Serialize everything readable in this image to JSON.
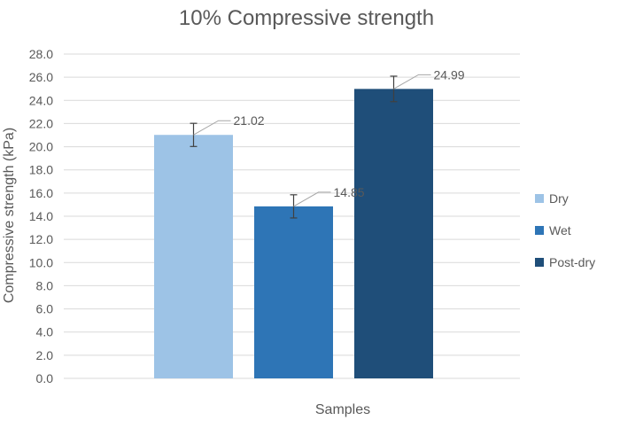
{
  "chart_data": {
    "type": "bar",
    "title": "10% Compressive strength",
    "xlabel": "Samples",
    "ylabel": "Compressive strength (kPa)",
    "ylim": [
      0,
      28
    ],
    "ytick_step": 2,
    "ytick_labels": [
      "0.0",
      "2.0",
      "4.0",
      "6.0",
      "8.0",
      "10.0",
      "12.0",
      "14.0",
      "16.0",
      "18.0",
      "20.0",
      "22.0",
      "24.0",
      "26.0",
      "28.0"
    ],
    "grid": true,
    "legend_position": "right",
    "series": [
      {
        "name": "Dry",
        "value": 21.02,
        "value_label": "21.02",
        "error": 1.0,
        "color": "#9DC3E6"
      },
      {
        "name": "Wet",
        "value": 14.85,
        "value_label": "14.85",
        "error": 1.0,
        "color": "#2E75B6"
      },
      {
        "name": "Post-dry",
        "value": 24.99,
        "value_label": "24.99",
        "error": 1.1,
        "color": "#1F4E79"
      }
    ],
    "colors": {
      "grid": "#d9d9d9",
      "text": "#595959",
      "errorbar": "#404040",
      "leader": "#a6a6a6"
    }
  }
}
